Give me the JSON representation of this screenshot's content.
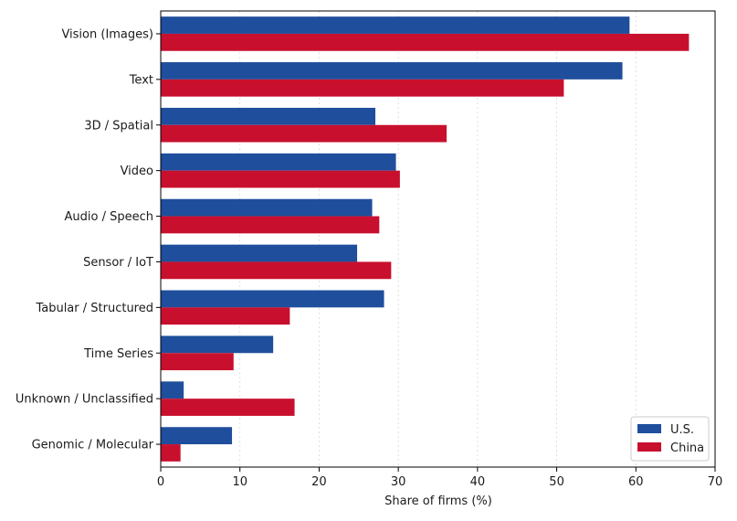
{
  "chart_data": {
    "type": "bar",
    "orientation": "horizontal",
    "title": "",
    "xlabel": "Share of firms (%)",
    "ylabel": "",
    "xlim": [
      0,
      70
    ],
    "xticks": [
      0,
      10,
      20,
      30,
      40,
      50,
      60,
      70
    ],
    "grid": "vertical, light dotted",
    "legend_position": "bottom-right",
    "categories": [
      "Vision (Images)",
      "Text",
      "3D / Spatial",
      "Video",
      "Audio / Speech",
      "Sensor / IoT",
      "Tabular / Structured",
      "Time Series",
      "Unknown / Unclassified",
      "Genomic / Molecular"
    ],
    "series": [
      {
        "name": "U.S.",
        "color": "#1f4e9c",
        "values": [
          59.2,
          58.3,
          27.1,
          29.7,
          26.7,
          24.8,
          28.2,
          14.2,
          2.9,
          9.0
        ]
      },
      {
        "name": "China",
        "color": "#c8102e",
        "values": [
          66.7,
          50.9,
          36.1,
          30.2,
          27.6,
          29.1,
          16.3,
          9.2,
          16.9,
          2.5
        ]
      }
    ]
  }
}
